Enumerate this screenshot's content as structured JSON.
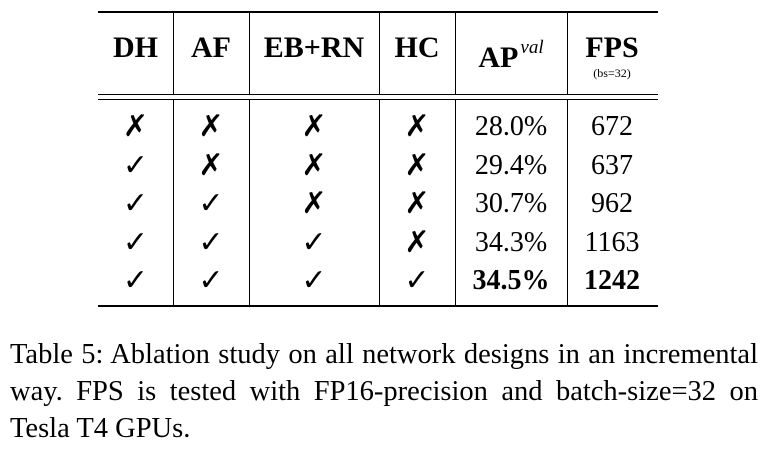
{
  "table": {
    "headers": {
      "dh": "DH",
      "af": "AF",
      "ebrn": "EB+RN",
      "hc": "HC",
      "ap": "AP",
      "ap_sup": "val",
      "fps": "FPS",
      "fps_sub": "(bs=32)"
    },
    "rows": [
      {
        "dh": "✗",
        "af": "✗",
        "ebrn": "✗",
        "hc": "✗",
        "ap": "28.0%",
        "fps": "672"
      },
      {
        "dh": "✓",
        "af": "✗",
        "ebrn": "✗",
        "hc": "✗",
        "ap": "29.4%",
        "fps": "637"
      },
      {
        "dh": "✓",
        "af": "✓",
        "ebrn": "✗",
        "hc": "✗",
        "ap": "30.7%",
        "fps": "962"
      },
      {
        "dh": "✓",
        "af": "✓",
        "ebrn": "✓",
        "hc": "✗",
        "ap": "34.3%",
        "fps": "1163"
      },
      {
        "dh": "✓",
        "af": "✓",
        "ebrn": "✓",
        "hc": "✓",
        "ap": "34.5%",
        "fps": "1242"
      }
    ]
  },
  "caption": "Table 5: Ablation study on all network designs in an incremental way. FPS is tested with FP16-precision and batch-size=32 on Tesla T4 GPUs."
}
